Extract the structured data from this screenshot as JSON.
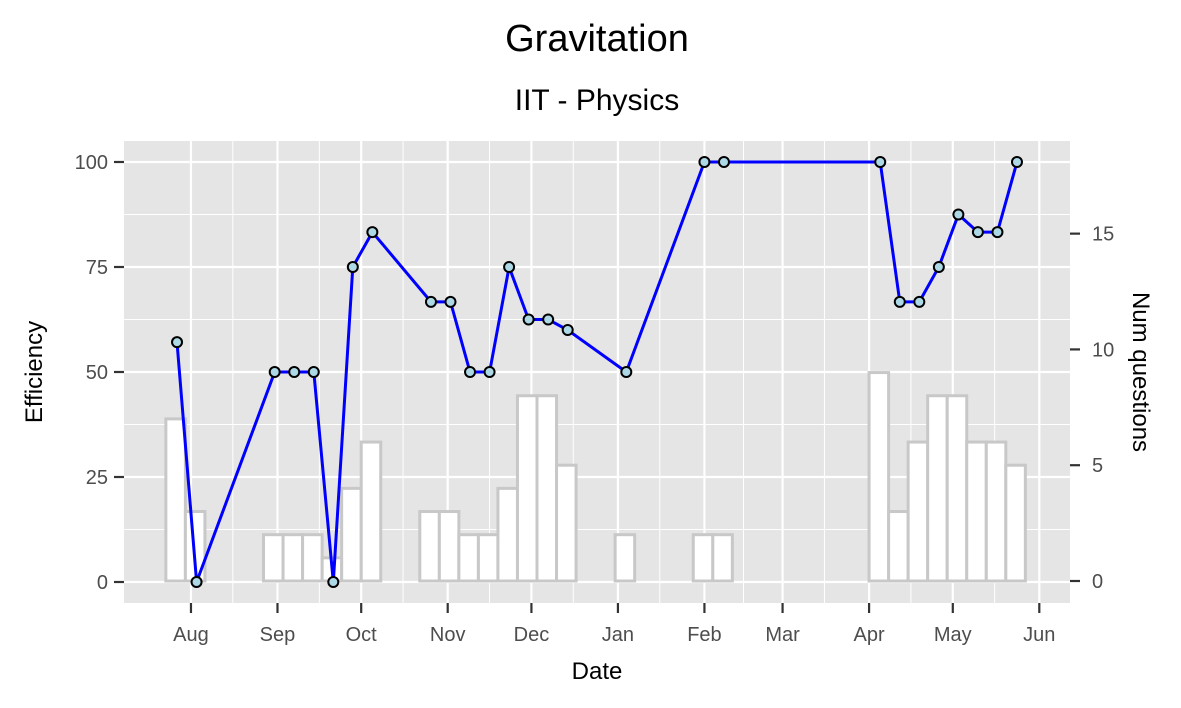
{
  "chart_data": {
    "type": "line",
    "title": "Gravitation",
    "subtitle": "IIT - Physics",
    "xlabel": "Date",
    "ylabel": "Efficiency",
    "y2label": "Num questions",
    "x_ticks": [
      "Aug",
      "Sep",
      "Oct",
      "Nov",
      "Dec",
      "Jan",
      "Feb",
      "Mar",
      "Apr",
      "May",
      "Jun"
    ],
    "x_tick_dates": [
      "2017-08-01",
      "2017-09-01",
      "2017-10-01",
      "2017-11-01",
      "2017-12-01",
      "2018-01-01",
      "2018-02-01",
      "2018-03-01",
      "2018-04-01",
      "2018-05-01",
      "2018-06-01"
    ],
    "xlim": [
      "2017-07-08",
      "2018-06-12"
    ],
    "y_ticks": [
      0,
      25,
      50,
      75,
      100
    ],
    "ylim": [
      -5,
      105
    ],
    "y2_ticks": [
      0,
      5,
      10,
      15
    ],
    "y2lim": [
      -0.95,
      19.0
    ],
    "grid": true,
    "colors": {
      "panel": "#e5e5e5",
      "grid": "#ffffff",
      "line": "#0000ff",
      "point_fill": "#add8e6",
      "point_stroke": "#000000",
      "bar_fill": "#ffffff",
      "bar_stroke": "#c8c8c8"
    },
    "series": [
      {
        "type": "line",
        "axis": "left",
        "points": [
          {
            "x": "2017-07-27",
            "y": 57.1
          },
          {
            "x": "2017-08-03",
            "y": 0
          },
          {
            "x": "2017-08-31",
            "y": 50
          },
          {
            "x": "2017-09-07",
            "y": 50
          },
          {
            "x": "2017-09-14",
            "y": 50
          },
          {
            "x": "2017-09-21",
            "y": 0
          },
          {
            "x": "2017-09-28",
            "y": 75
          },
          {
            "x": "2017-10-05",
            "y": 83.3
          },
          {
            "x": "2017-10-26",
            "y": 66.7
          },
          {
            "x": "2017-11-02",
            "y": 66.7
          },
          {
            "x": "2017-11-09",
            "y": 50
          },
          {
            "x": "2017-11-16",
            "y": 50
          },
          {
            "x": "2017-11-23",
            "y": 75
          },
          {
            "x": "2017-11-30",
            "y": 62.5
          },
          {
            "x": "2017-12-07",
            "y": 62.5
          },
          {
            "x": "2017-12-14",
            "y": 60
          },
          {
            "x": "2018-01-04",
            "y": 50
          },
          {
            "x": "2018-02-01",
            "y": 100
          },
          {
            "x": "2018-02-08",
            "y": 100
          },
          {
            "x": "2018-04-05",
            "y": 100
          },
          {
            "x": "2018-04-12",
            "y": 66.7
          },
          {
            "x": "2018-04-19",
            "y": 66.7
          },
          {
            "x": "2018-04-26",
            "y": 75
          },
          {
            "x": "2018-05-03",
            "y": 87.5
          },
          {
            "x": "2018-05-10",
            "y": 83.3
          },
          {
            "x": "2018-05-17",
            "y": 83.3
          },
          {
            "x": "2018-05-24",
            "y": 100
          }
        ]
      },
      {
        "type": "bar",
        "axis": "right",
        "width_days": 7,
        "points": [
          {
            "x": "2017-07-27",
            "y": 7
          },
          {
            "x": "2017-08-03",
            "y": 3
          },
          {
            "x": "2017-08-31",
            "y": 2
          },
          {
            "x": "2017-09-07",
            "y": 2
          },
          {
            "x": "2017-09-14",
            "y": 2
          },
          {
            "x": "2017-09-21",
            "y": 1
          },
          {
            "x": "2017-09-28",
            "y": 4
          },
          {
            "x": "2017-10-05",
            "y": 6
          },
          {
            "x": "2017-10-26",
            "y": 3
          },
          {
            "x": "2017-11-02",
            "y": 3
          },
          {
            "x": "2017-11-09",
            "y": 2
          },
          {
            "x": "2017-11-16",
            "y": 2
          },
          {
            "x": "2017-11-23",
            "y": 4
          },
          {
            "x": "2017-11-30",
            "y": 8
          },
          {
            "x": "2017-12-07",
            "y": 8
          },
          {
            "x": "2017-12-14",
            "y": 5
          },
          {
            "x": "2018-01-04",
            "y": 2
          },
          {
            "x": "2018-02-01",
            "y": 2
          },
          {
            "x": "2018-02-08",
            "y": 2
          },
          {
            "x": "2018-04-05",
            "y": 9
          },
          {
            "x": "2018-04-12",
            "y": 3
          },
          {
            "x": "2018-04-19",
            "y": 6
          },
          {
            "x": "2018-04-26",
            "y": 8
          },
          {
            "x": "2018-05-03",
            "y": 8
          },
          {
            "x": "2018-05-10",
            "y": 6
          },
          {
            "x": "2018-05-17",
            "y": 6
          },
          {
            "x": "2018-05-24",
            "y": 5
          }
        ]
      }
    ]
  }
}
